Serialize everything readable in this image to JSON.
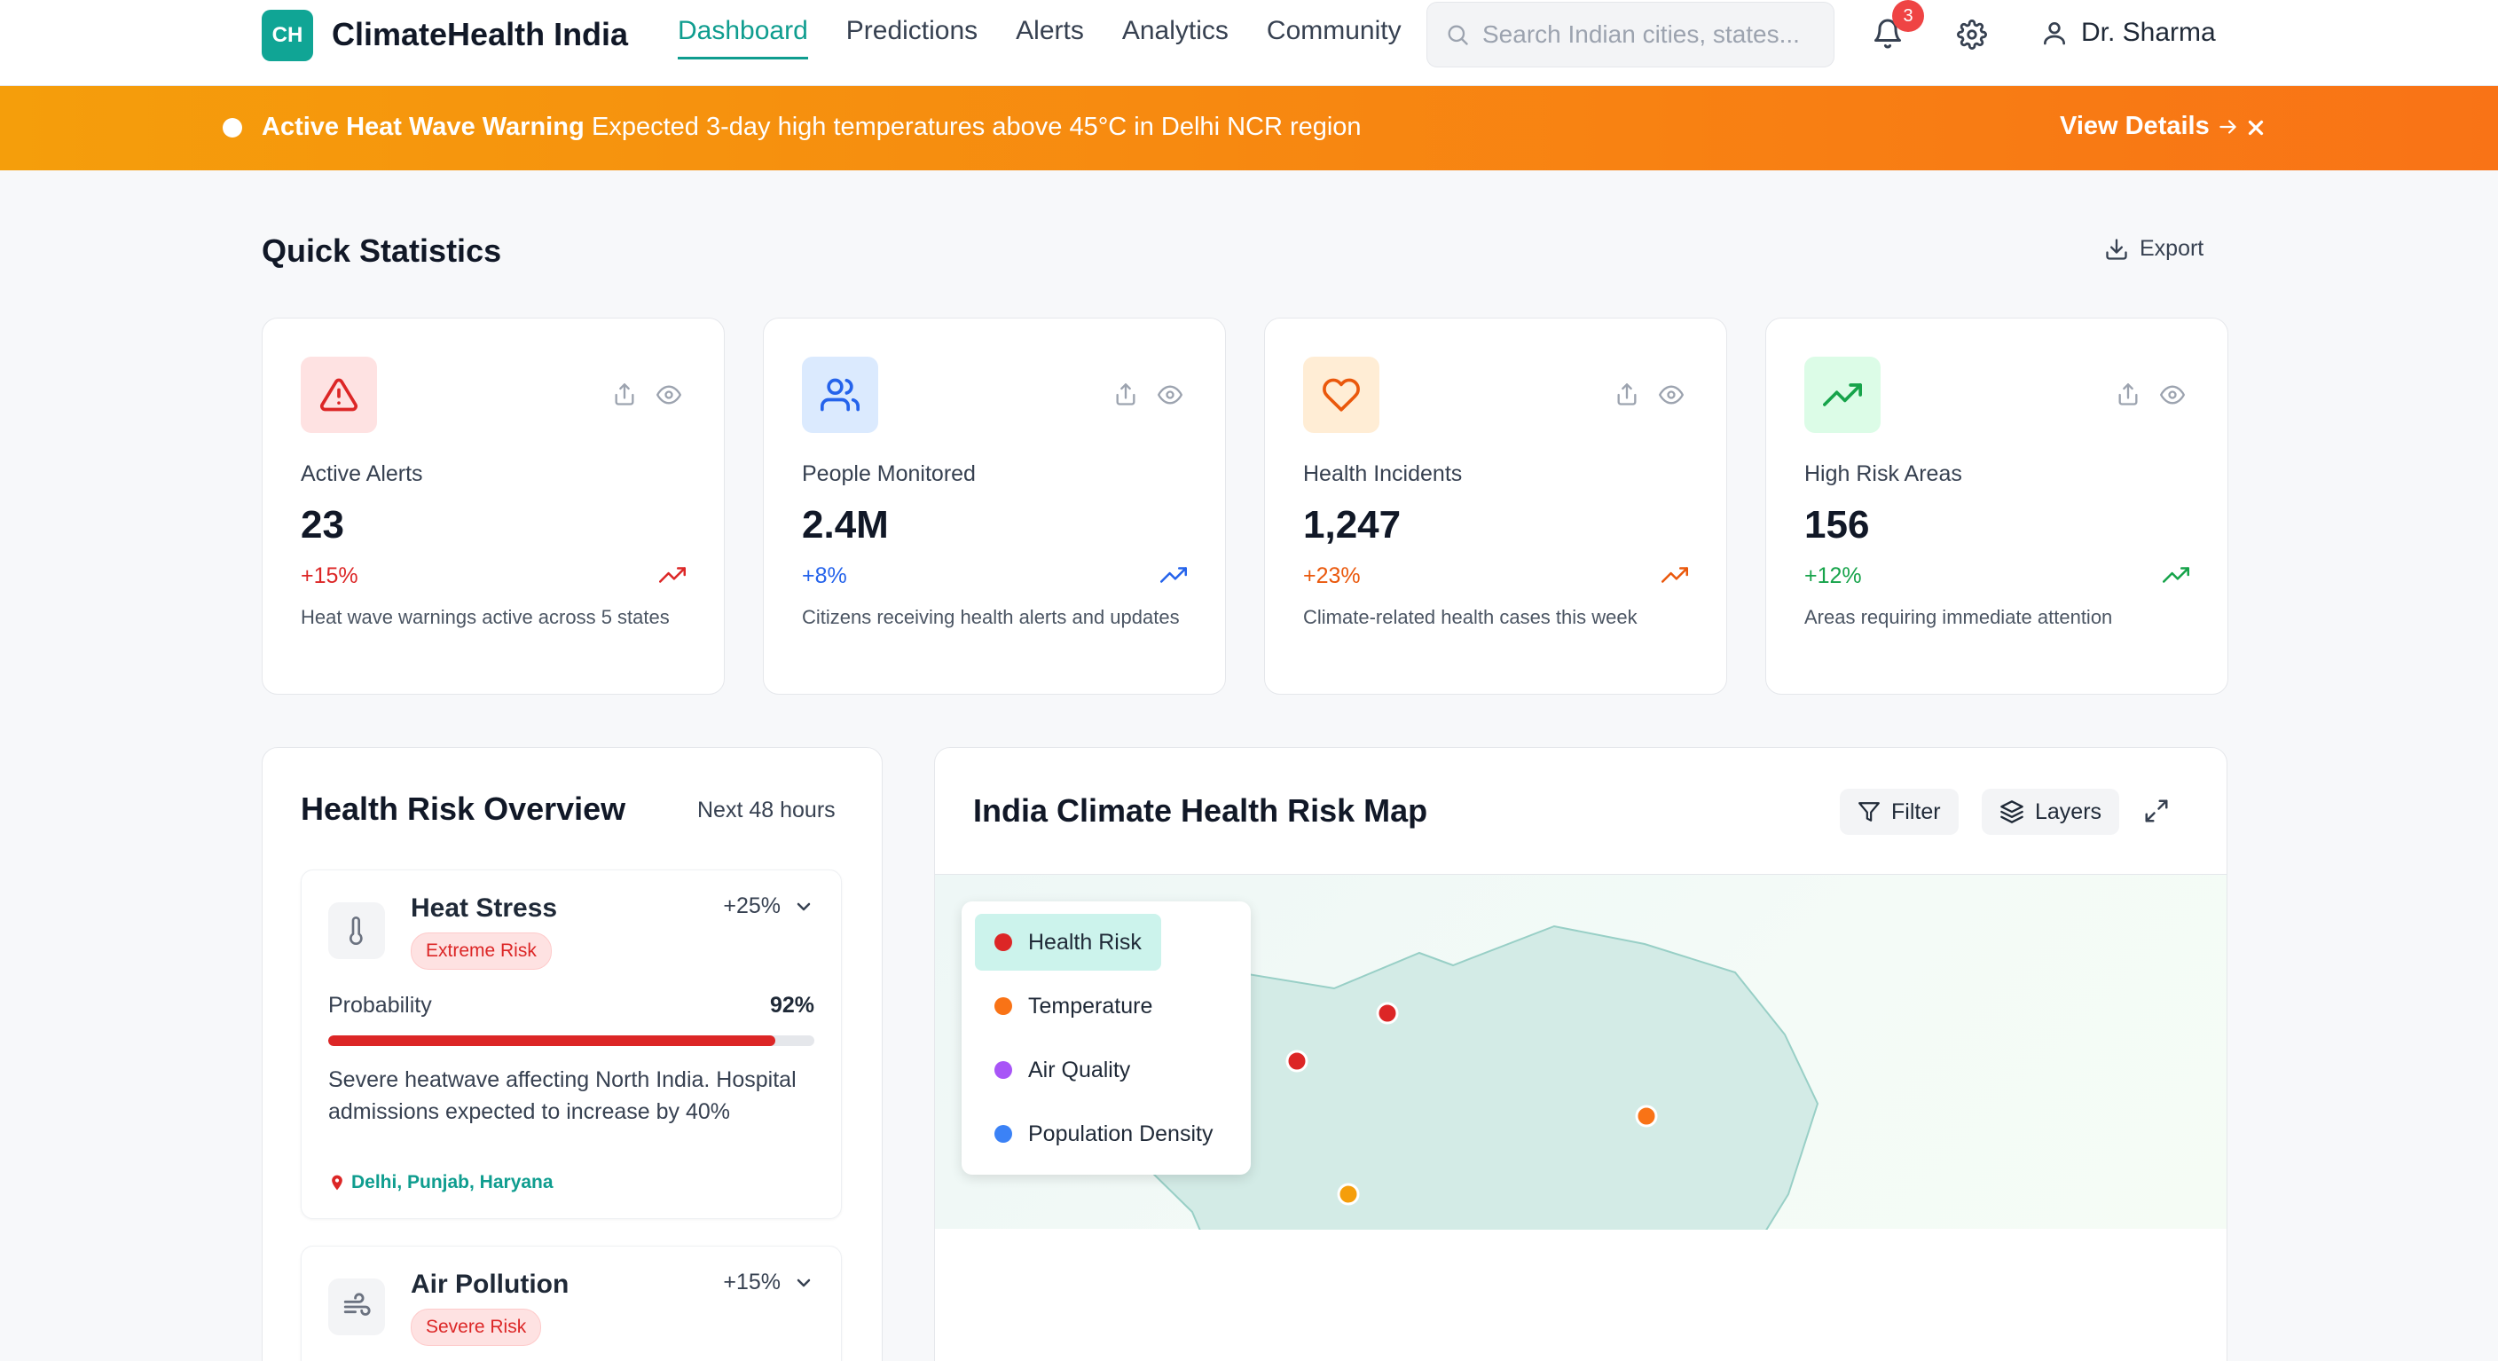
{
  "header": {
    "logo_initials": "CH",
    "app_name": "ClimateHealth India",
    "nav": [
      {
        "label": "Dashboard",
        "active": true
      },
      {
        "label": "Predictions",
        "active": false
      },
      {
        "label": "Alerts",
        "active": false
      },
      {
        "label": "Analytics",
        "active": false
      },
      {
        "label": "Community",
        "active": false
      }
    ],
    "search_placeholder": "Search Indian cities, states...",
    "notification_count": "3",
    "user_name": "Dr. Sharma"
  },
  "banner": {
    "title": "Active Heat Wave Warning",
    "message": "Expected 3-day high temperatures above 45°C in Delhi NCR region",
    "link_label": "View Details"
  },
  "quick_stats": {
    "title": "Quick Statistics",
    "export_label": "Export",
    "cards": [
      {
        "icon": "alert-triangle-icon",
        "label": "Active Alerts",
        "value": "23",
        "change": "+15%",
        "description": "Heat wave warnings active across 5 states",
        "accent": "#dc2626",
        "bg": "#fee2e2"
      },
      {
        "icon": "users-icon",
        "label": "People Monitored",
        "value": "2.4M",
        "change": "+8%",
        "description": "Citizens receiving health alerts and updates",
        "accent": "#2563eb",
        "bg": "#dbeafe"
      },
      {
        "icon": "heart-icon",
        "label": "Health Incidents",
        "value": "1,247",
        "change": "+23%",
        "description": "Climate-related health cases this week",
        "accent": "#ea580c",
        "bg": "#ffedd5"
      },
      {
        "icon": "trending-up-icon",
        "label": "High Risk Areas",
        "value": "156",
        "change": "+12%",
        "description": "Areas requiring immediate attention",
        "accent": "#16a34a",
        "bg": "#dcfce7"
      }
    ]
  },
  "health_risk": {
    "title": "Health Risk Overview",
    "subtitle": "Next 48 hours",
    "items": [
      {
        "icon": "thermometer-icon",
        "name": "Heat Stress",
        "badge": "Extreme Risk",
        "delta": "+25%",
        "probability_label": "Probability",
        "probability": "92%",
        "probability_value": 92,
        "description": "Severe heatwave affecting North India. Hospital admissions expected to increase by 40%",
        "locations": "Delhi, Punjab, Haryana"
      },
      {
        "icon": "wind-icon",
        "name": "Air Pollution",
        "badge": "Severe Risk",
        "delta": "+15%"
      }
    ]
  },
  "map": {
    "title": "India Climate Health Risk Map",
    "filter_label": "Filter",
    "layers_label": "Layers",
    "legend": [
      {
        "label": "Health Risk",
        "color": "#dc2626",
        "active": true
      },
      {
        "label": "Temperature",
        "color": "#f97316",
        "active": false
      },
      {
        "label": "Air Quality",
        "color": "#a855f7",
        "active": false
      },
      {
        "label": "Population Density",
        "color": "#3b82f6",
        "active": false
      }
    ],
    "marker_colors": {
      "risk": "#dc2626",
      "temperature": "#f97316",
      "heat": "#f59e0b"
    }
  }
}
